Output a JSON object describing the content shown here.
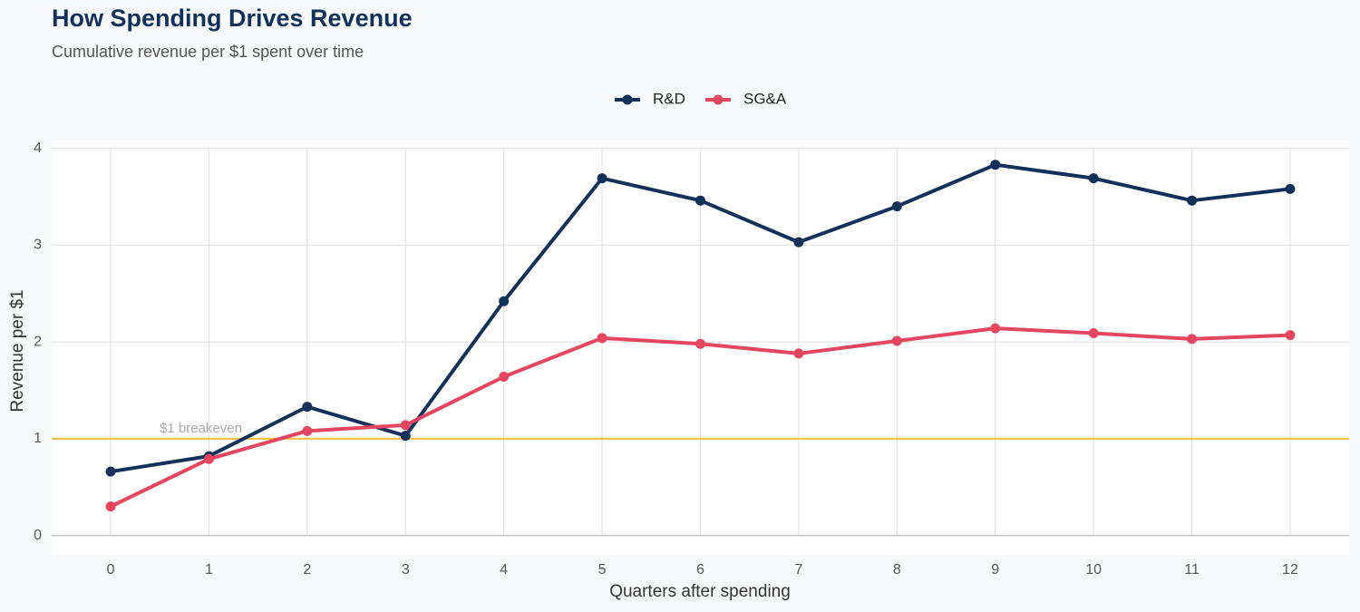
{
  "chart_data": {
    "type": "line",
    "title": "How Spending Drives Revenue",
    "subtitle": "Cumulative revenue per $1 spent over time",
    "x_label": "Quarters after spending",
    "y_label": "Revenue per $1",
    "x": [
      0,
      1,
      2,
      3,
      4,
      5,
      6,
      7,
      8,
      9,
      10,
      11,
      12
    ],
    "series": [
      {
        "name": "R&D",
        "color": "#12315a",
        "values": [
          0.66,
          0.82,
          1.33,
          1.03,
          2.42,
          3.69,
          3.46,
          3.03,
          3.4,
          3.83,
          3.69,
          3.46,
          3.58
        ]
      },
      {
        "name": "SG&A",
        "color": "#e4455f",
        "values": [
          0.3,
          0.79,
          1.08,
          1.14,
          1.64,
          2.04,
          1.98,
          1.88,
          2.01,
          2.14,
          2.09,
          2.03,
          2.07
        ]
      }
    ],
    "reference_line": {
      "value": 1,
      "label": "$1 breakeven",
      "color": "#f2c14e"
    },
    "xlim": [
      -0.6,
      12.6
    ],
    "xticks": [
      0,
      1,
      2,
      3,
      4,
      5,
      6,
      7,
      8,
      9,
      10,
      11,
      12
    ],
    "ylim": [
      -0.2,
      4.08
    ],
    "yticks": [
      0,
      1,
      2,
      3,
      4
    ],
    "grid": true,
    "legend": "top"
  }
}
